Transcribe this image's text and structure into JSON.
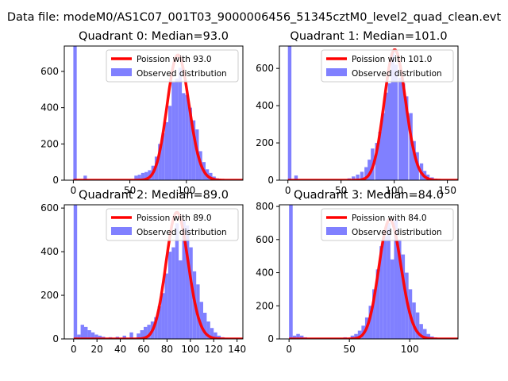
{
  "figure": {
    "title": "Data file: modeM0/AS1C07_001T03_9000006456_51345cztM0_level2_quad_clean.evt"
  },
  "colors": {
    "poisson_line": "#ff0000",
    "histogram": "#8080ff",
    "axes": "#000000"
  },
  "chart_data": [
    {
      "type": "bar",
      "title": "Quadrant 0: Median=93.0",
      "xlabel": "",
      "ylabel": "",
      "xlim": [
        -8,
        150
      ],
      "ylim": [
        0,
        740
      ],
      "xticks": [
        "0",
        "50",
        "100"
      ],
      "yticks": [
        "0",
        "200",
        "400",
        "600"
      ],
      "legend": {
        "position": "top-right",
        "entries": [
          "Poission with 93.0",
          "Observed distribution"
        ]
      },
      "series": [
        {
          "name": "Observed distribution",
          "kind": "histogram",
          "bin_width": 3.0,
          "bins": [
            [
              0,
              740
            ],
            [
              9,
              25
            ],
            [
              54,
              25
            ],
            [
              57,
              30
            ],
            [
              60,
              40
            ],
            [
              63,
              45
            ],
            [
              66,
              55
            ],
            [
              69,
              80
            ],
            [
              72,
              130
            ],
            [
              75,
              200
            ],
            [
              78,
              260
            ],
            [
              81,
              320
            ],
            [
              84,
              410
            ],
            [
              87,
              540
            ],
            [
              90,
              560
            ],
            [
              93,
              620
            ],
            [
              96,
              480
            ],
            [
              99,
              470
            ],
            [
              102,
              400
            ],
            [
              105,
              330
            ],
            [
              108,
              280
            ],
            [
              111,
              160
            ],
            [
              114,
              100
            ],
            [
              117,
              60
            ],
            [
              120,
              40
            ],
            [
              123,
              20
            ],
            [
              126,
              10
            ],
            [
              129,
              6
            ],
            [
              132,
              3
            ],
            [
              135,
              2
            ]
          ]
        },
        {
          "name": "Poission with 93.0",
          "kind": "poisson_curve",
          "mean": 93.0,
          "scale": 690
        }
      ]
    },
    {
      "type": "bar",
      "title": "Quadrant 1: Median=101.0",
      "xlabel": "",
      "ylabel": "",
      "xlim": [
        -8,
        160
      ],
      "ylim": [
        0,
        720
      ],
      "xticks": [
        "0",
        "50",
        "100",
        "150"
      ],
      "yticks": [
        "0",
        "200",
        "400",
        "600"
      ],
      "legend": {
        "position": "top-right",
        "entries": [
          "Poission with 101.0",
          "Observed distribution"
        ]
      },
      "series": [
        {
          "name": "Observed distribution",
          "kind": "histogram",
          "bin_width": 3.3,
          "bins": [
            [
              0,
              720
            ],
            [
              6,
              25
            ],
            [
              56,
              10
            ],
            [
              60,
              20
            ],
            [
              64,
              30
            ],
            [
              68,
              45
            ],
            [
              72,
              70
            ],
            [
              75,
              110
            ],
            [
              78,
              170
            ],
            [
              82,
              200
            ],
            [
              85,
              260
            ],
            [
              88,
              360
            ],
            [
              91,
              470
            ],
            [
              94,
              520
            ],
            [
              97,
              690
            ],
            [
              100,
              620
            ],
            [
              104,
              550
            ],
            [
              107,
              520
            ],
            [
              110,
              450
            ],
            [
              114,
              360
            ],
            [
              117,
              210
            ],
            [
              120,
              150
            ],
            [
              124,
              90
            ],
            [
              127,
              50
            ],
            [
              130,
              30
            ],
            [
              134,
              15
            ],
            [
              137,
              6
            ],
            [
              140,
              3
            ]
          ]
        },
        {
          "name": "Poission with 101.0",
          "kind": "poisson_curve",
          "mean": 101.0,
          "scale": 700
        }
      ]
    },
    {
      "type": "bar",
      "title": "Quadrant 2: Median=89.0",
      "xlabel": "",
      "ylabel": "",
      "xlim": [
        -8,
        145
      ],
      "ylim": [
        0,
        615
      ],
      "xticks": [
        "0",
        "20",
        "40",
        "60",
        "80",
        "100",
        "120",
        "140"
      ],
      "yticks": [
        "0",
        "200",
        "400",
        "600"
      ],
      "legend": {
        "position": "top-right",
        "entries": [
          "Poission with 89.0",
          "Observed distribution"
        ]
      },
      "series": [
        {
          "name": "Observed distribution",
          "kind": "histogram",
          "bin_width": 3.0,
          "bins": [
            [
              0,
              615
            ],
            [
              3,
              20
            ],
            [
              6,
              65
            ],
            [
              9,
              55
            ],
            [
              12,
              40
            ],
            [
              15,
              30
            ],
            [
              18,
              20
            ],
            [
              21,
              15
            ],
            [
              24,
              10
            ],
            [
              30,
              8
            ],
            [
              36,
              10
            ],
            [
              42,
              15
            ],
            [
              48,
              30
            ],
            [
              54,
              25
            ],
            [
              57,
              40
            ],
            [
              60,
              55
            ],
            [
              63,
              65
            ],
            [
              66,
              80
            ],
            [
              69,
              100
            ],
            [
              72,
              150
            ],
            [
              75,
              210
            ],
            [
              78,
              300
            ],
            [
              81,
              400
            ],
            [
              84,
              420
            ],
            [
              87,
              530
            ],
            [
              90,
              360
            ],
            [
              93,
              540
            ],
            [
              96,
              520
            ],
            [
              99,
              420
            ],
            [
              102,
              310
            ],
            [
              105,
              250
            ],
            [
              108,
              170
            ],
            [
              111,
              120
            ],
            [
              114,
              80
            ],
            [
              117,
              50
            ],
            [
              120,
              30
            ],
            [
              123,
              15
            ],
            [
              126,
              8
            ],
            [
              129,
              4
            ]
          ]
        },
        {
          "name": "Poission with 89.0",
          "kind": "poisson_curve",
          "mean": 89.0,
          "scale": 580
        }
      ]
    },
    {
      "type": "bar",
      "title": "Quadrant 3: Median=84.0",
      "xlabel": "",
      "ylabel": "",
      "xlim": [
        -8,
        140
      ],
      "ylim": [
        0,
        810
      ],
      "xticks": [
        "0",
        "50",
        "100"
      ],
      "yticks": [
        "0",
        "200",
        "400",
        "600",
        "800"
      ],
      "legend": {
        "position": "top-right",
        "entries": [
          "Poission with 84.0",
          "Observed distribution"
        ]
      },
      "series": [
        {
          "name": "Observed distribution",
          "kind": "histogram",
          "bin_width": 3.0,
          "bins": [
            [
              0,
              810
            ],
            [
              3,
              20
            ],
            [
              6,
              30
            ],
            [
              9,
              20
            ],
            [
              12,
              10
            ],
            [
              45,
              10
            ],
            [
              51,
              20
            ],
            [
              54,
              30
            ],
            [
              57,
              50
            ],
            [
              60,
              80
            ],
            [
              63,
              130
            ],
            [
              66,
              200
            ],
            [
              69,
              300
            ],
            [
              72,
              420
            ],
            [
              75,
              560
            ],
            [
              78,
              620
            ],
            [
              81,
              700
            ],
            [
              84,
              480
            ],
            [
              87,
              720
            ],
            [
              90,
              600
            ],
            [
              93,
              510
            ],
            [
              96,
              400
            ],
            [
              99,
              300
            ],
            [
              102,
              220
            ],
            [
              105,
              160
            ],
            [
              108,
              90
            ],
            [
              111,
              60
            ],
            [
              114,
              30
            ],
            [
              117,
              15
            ],
            [
              120,
              8
            ]
          ]
        },
        {
          "name": "Poission with 84.0",
          "kind": "poisson_curve",
          "mean": 84.0,
          "scale": 720
        }
      ]
    }
  ]
}
